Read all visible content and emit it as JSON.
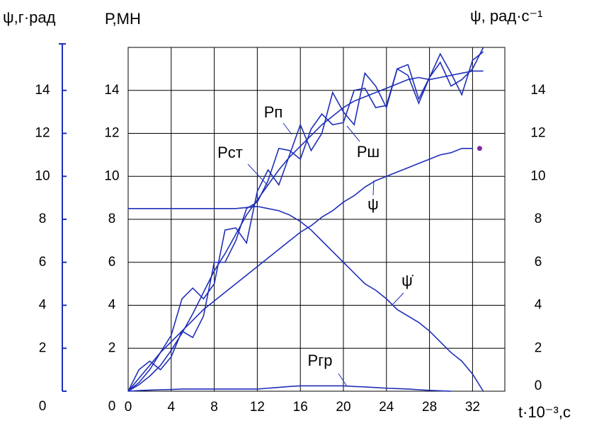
{
  "chart_data": {
    "type": "line",
    "y3_label": "ψ,г·рад",
    "y_label": "Р,МН",
    "y2_label": "ψ, рад·с⁻¹",
    "x_label": "t·10⁻³,с",
    "color": "#1f2fb8",
    "grid": true,
    "xlim": [
      0,
      35
    ],
    "xticks": [
      0,
      4,
      8,
      12,
      16,
      20,
      24,
      28,
      32
    ],
    "ylim": [
      0,
      16
    ],
    "yticks": [
      0,
      2,
      4,
      6,
      8,
      10,
      12,
      14
    ],
    "y2lim": [
      0,
      16
    ],
    "y2ticks": [
      0,
      2,
      4,
      6,
      8,
      10,
      12,
      14
    ],
    "y3lim": [
      0,
      16
    ],
    "y3ticks": [
      0,
      2,
      4,
      6,
      8,
      10,
      12,
      14
    ],
    "x": [
      0,
      1,
      2,
      3,
      4,
      5,
      6,
      7,
      8,
      9,
      10,
      11,
      12,
      13,
      14,
      15,
      16,
      17,
      18,
      19,
      20,
      21,
      22,
      23,
      24,
      25,
      26,
      27,
      28,
      29,
      30,
      31,
      32,
      33
    ],
    "series": [
      {
        "name": "Рст",
        "values": [
          0,
          0.3,
          0.7,
          1.2,
          1.9,
          2.7,
          3.6,
          4.6,
          5.6,
          6.4,
          7.3,
          8.2,
          8.9,
          9.6,
          10.3,
          10.9,
          11.4,
          11.9,
          12.4,
          12.8,
          13.2,
          13.5,
          13.7,
          13.9,
          14.1,
          14.3,
          14.5,
          14.6,
          14.5,
          14.6,
          14.7,
          14.8,
          14.9,
          14.9
        ]
      },
      {
        "name": "Рп",
        "values": [
          0,
          0.4,
          1.0,
          1.8,
          2.6,
          4.3,
          4.8,
          4.3,
          5.0,
          7.5,
          7.6,
          6.9,
          9.3,
          10.3,
          9.6,
          11.0,
          12.4,
          11.2,
          12.0,
          13.9,
          13.0,
          12.4,
          14.8,
          14.2,
          13.2,
          15.0,
          15.2,
          13.6,
          14.6,
          15.7,
          14.8,
          13.8,
          15.4,
          15.8
        ]
      },
      {
        "name": "Рш",
        "values": [
          0,
          1.0,
          1.4,
          1.0,
          1.6,
          2.8,
          2.5,
          3.5,
          6.0,
          6.0,
          7.0,
          8.5,
          8.8,
          9.8,
          11.3,
          11.2,
          10.8,
          12.2,
          12.9,
          12.4,
          12.5,
          14.0,
          14.1,
          13.2,
          13.3,
          15.0,
          14.7,
          13.4,
          14.6,
          15.3,
          14.2,
          14.5,
          15.0,
          16.0
        ]
      },
      {
        "name": "ψ",
        "values": [
          0,
          0.6,
          1.2,
          1.8,
          2.3,
          2.8,
          3.3,
          3.8,
          4.2,
          4.6,
          5.0,
          5.4,
          5.8,
          6.2,
          6.6,
          7.0,
          7.4,
          7.7,
          8.1,
          8.4,
          8.8,
          9.1,
          9.5,
          9.8,
          10.0,
          10.2,
          10.4,
          10.6,
          10.8,
          11.0,
          11.1,
          11.3,
          11.3,
          null
        ]
      },
      {
        "name": "ψ̇",
        "values": [
          8.5,
          8.5,
          8.5,
          8.5,
          8.5,
          8.5,
          8.5,
          8.5,
          8.5,
          8.5,
          8.5,
          8.55,
          8.6,
          8.5,
          8.4,
          8.2,
          7.9,
          7.5,
          7.0,
          6.5,
          6.0,
          5.5,
          5.0,
          4.7,
          4.3,
          3.8,
          3.5,
          3.2,
          2.8,
          2.3,
          1.8,
          1.4,
          0.8,
          0.0
        ]
      },
      {
        "name": "Ргр",
        "values": [
          0,
          0.03,
          0.05,
          0.07,
          0.08,
          0.1,
          0.1,
          0.1,
          0.1,
          0.1,
          0.1,
          0.1,
          0.1,
          0.14,
          0.18,
          0.22,
          0.25,
          0.25,
          0.25,
          0.25,
          0.25,
          0.22,
          0.2,
          0.17,
          0.14,
          0.12,
          0.1,
          0.07,
          0.04,
          0.02,
          0,
          null,
          null,
          null
        ]
      }
    ]
  }
}
